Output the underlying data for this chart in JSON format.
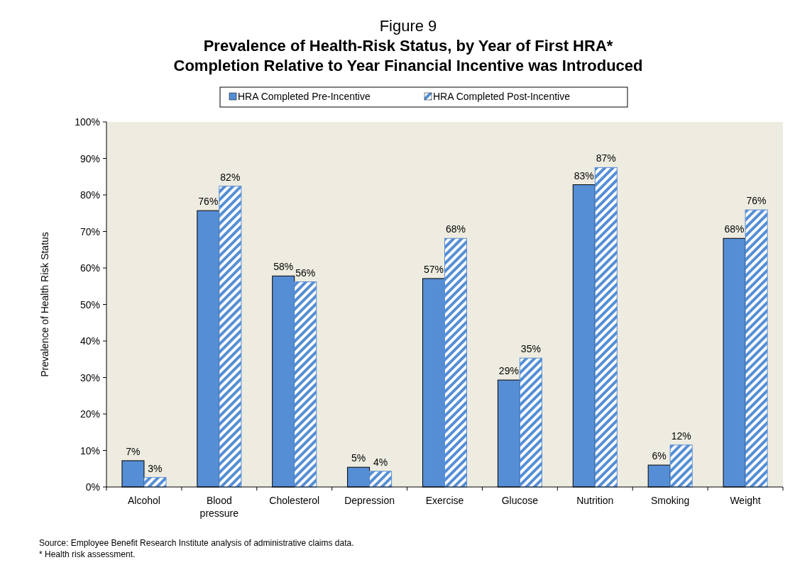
{
  "chart_data": {
    "type": "bar",
    "title": "Figure 9",
    "subtitle": "Prevalence of Health-Risk Status, by Year of First HRA* Completion Relative to Year Financial Incentive was Introduced",
    "ylabel": "Prevalence of Health Risk Status",
    "categories": [
      "Alcohol",
      "Blood pressure",
      "Cholesterol",
      "Depression",
      "Exercise",
      "Glucose",
      "Nutrition",
      "Smoking",
      "Weight"
    ],
    "series": [
      {
        "name": "HRA Completed Pre-Incentive",
        "color": "#558ed5",
        "values": [
          7.2,
          75.7,
          57.8,
          5.4,
          57.1,
          29.3,
          82.8,
          6.0,
          68.1
        ],
        "value_labels": [
          "7%",
          "76%",
          "58%",
          "5%",
          "57%",
          "29%",
          "83%",
          "6%",
          "68%"
        ]
      },
      {
        "name": "HRA Completed Post-Incentive",
        "color": "#558ed5",
        "values": [
          2.6,
          82.4,
          56.2,
          4.3,
          68.1,
          35.3,
          87.5,
          11.5,
          75.9
        ],
        "value_labels": [
          "3%",
          "82%",
          "56%",
          "4%",
          "68%",
          "35%",
          "87%",
          "12%",
          "76%"
        ]
      }
    ],
    "ylim": [
      0,
      100
    ],
    "yticks": [
      {
        "value": 0,
        "label": "0%"
      },
      {
        "value": 10,
        "label": "10%"
      },
      {
        "value": 20,
        "label": "20%"
      },
      {
        "value": 30,
        "label": "30%"
      },
      {
        "value": 40,
        "label": "40%"
      },
      {
        "value": 50,
        "label": "50%"
      },
      {
        "value": 60,
        "label": "60%"
      },
      {
        "value": 70,
        "label": "70%"
      },
      {
        "value": 80,
        "label": "80%"
      },
      {
        "value": 90,
        "label": "90%"
      },
      {
        "value": 100,
        "label": "100%"
      }
    ],
    "grid": false,
    "legend": "top",
    "annotations": [
      "Source: Employee Benefit Research Institute analysis of administrative claims data.",
      "* Health risk assessment."
    ]
  }
}
